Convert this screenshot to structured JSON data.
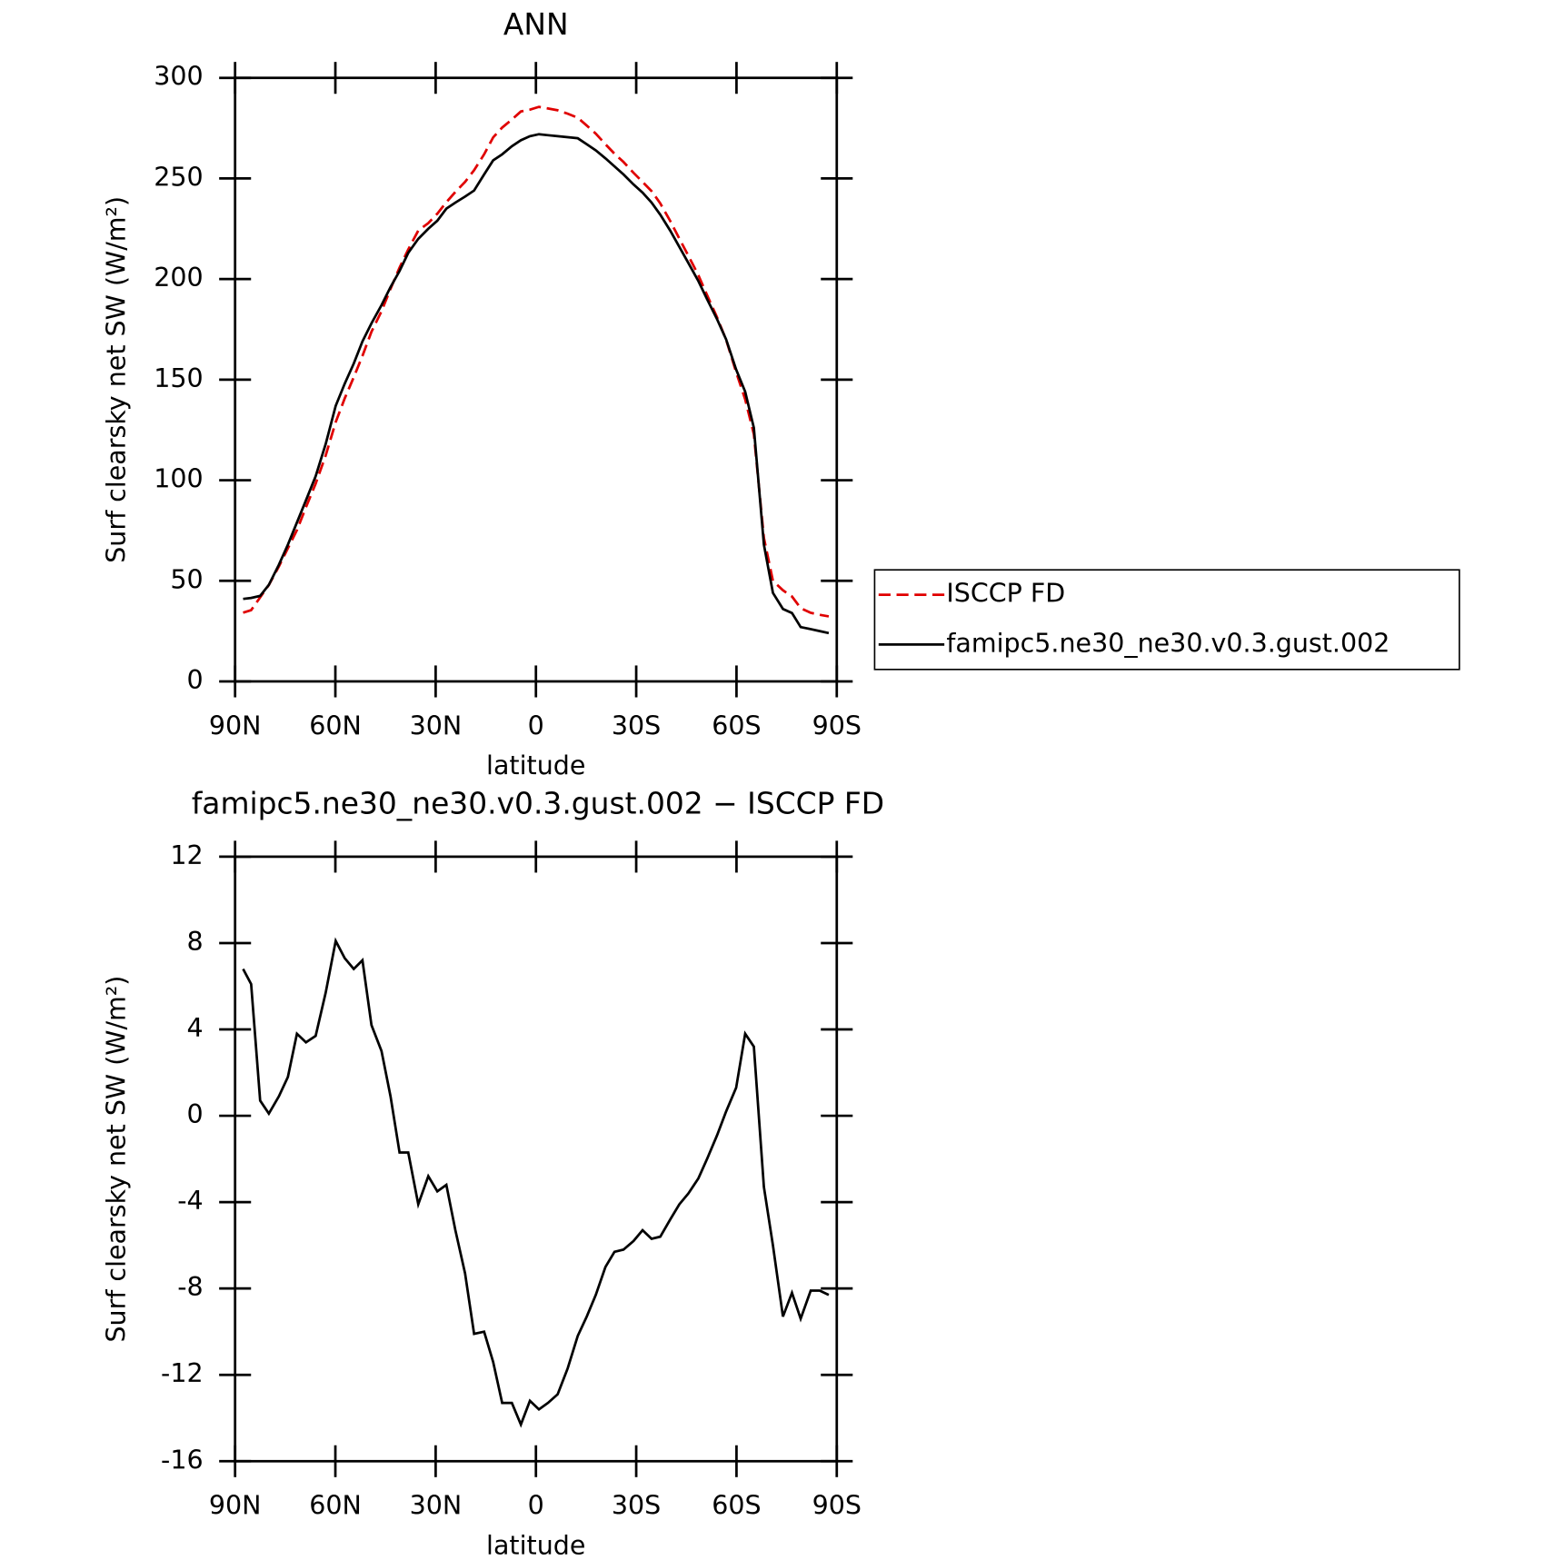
{
  "chart_data": [
    {
      "type": "line",
      "title": "ANN",
      "xlabel": "latitude",
      "ylabel": "Surf clearsky net SW (W/m²)",
      "x": [
        87.6,
        85.2,
        82.5,
        79.9,
        76.9,
        74.2,
        71.5,
        68.8,
        65.9,
        62.9,
        59.9,
        57.2,
        54.5,
        51.9,
        49.2,
        46.2,
        43.5,
        40.8,
        38.2,
        35.2,
        32.2,
        29.5,
        26.8,
        24.1,
        21.2,
        18.5,
        15.5,
        12.8,
        10.1,
        7.2,
        4.5,
        1.8,
        -0.9,
        -3.6,
        -6.5,
        -9.5,
        -12.5,
        -15.2,
        -17.9,
        -20.8,
        -23.5,
        -26.2,
        -29.2,
        -31.9,
        -34.6,
        -37.2,
        -40.2,
        -42.9,
        -45.6,
        -48.6,
        -51.2,
        -54.2,
        -56.9,
        -59.9,
        -62.6,
        -65.2,
        -68.2,
        -70.9,
        -73.9,
        -76.6,
        -79.2,
        -82.2,
        -84.9,
        -87.6
      ],
      "series": [
        {
          "name": "ISCCP FD",
          "color": "#e00000",
          "linestyle": "dashed",
          "values": [
            34.2,
            35.4,
            41.8,
            47.9,
            57.1,
            66.2,
            75.2,
            86.6,
            98.3,
            112.3,
            128.9,
            140.7,
            151.2,
            161.8,
            173.8,
            184,
            195.1,
            205.7,
            214.7,
            224.1,
            227.8,
            232.5,
            238.2,
            243.3,
            248.3,
            254.1,
            262,
            270.4,
            275.3,
            279.3,
            283.3,
            284.2,
            285.6,
            284.8,
            283.9,
            282.2,
            280.2,
            276.3,
            272.3,
            267,
            262.3,
            258.2,
            252.8,
            248.3,
            243.7,
            237.6,
            228.8,
            220.1,
            211.6,
            201.9,
            192,
            180.9,
            169.8,
            153.7,
            140.2,
            122.8,
            71.3,
            50,
            45.3,
            42.2,
            36.4,
            34.1,
            33.1,
            32.3
          ]
        },
        {
          "name": "famipc5.ne30_ne30.v0.3.gust.002",
          "color": "#000000",
          "linestyle": "solid",
          "values": [
            41,
            41.5,
            42.5,
            48,
            58,
            68,
            79,
            90,
            102,
            118,
            137,
            148,
            158,
            169,
            178,
            187,
            196,
            204,
            213,
            220,
            225,
            229,
            235,
            238,
            241,
            244,
            252,
            259,
            262,
            266,
            269,
            271,
            272,
            271.5,
            271,
            270.5,
            270,
            267,
            264,
            260,
            256,
            252,
            247,
            243,
            238,
            232,
            224,
            216,
            208,
            199,
            190,
            180,
            170,
            155,
            144,
            126,
            68,
            44,
            36,
            34,
            27,
            26,
            25,
            24
          ]
        }
      ],
      "xlim": [
        90,
        -90
      ],
      "xticks": [
        {
          "value": 90,
          "label": "90N"
        },
        {
          "value": 60,
          "label": "60N"
        },
        {
          "value": 30,
          "label": "30N"
        },
        0,
        {
          "value": -30,
          "label": "30S"
        },
        {
          "value": -60,
          "label": "60S"
        },
        {
          "value": -90,
          "label": "90S"
        }
      ],
      "ylim": [
        0,
        300
      ],
      "yticks": [
        0,
        50,
        100,
        150,
        200,
        250,
        300
      ],
      "legend": "right"
    },
    {
      "type": "line",
      "title": "famipc5.ne30_ne30.v0.3.gust.002 − ISCCP FD",
      "xlabel": "latitude",
      "ylabel": "Surf clearsky net SW (W/m²)",
      "x": [
        87.6,
        85.2,
        82.5,
        79.9,
        76.9,
        74.2,
        71.5,
        68.8,
        65.9,
        62.9,
        59.9,
        57.2,
        54.5,
        51.9,
        49.2,
        46.2,
        43.5,
        40.8,
        38.2,
        35.2,
        32.2,
        29.5,
        26.8,
        24.1,
        21.2,
        18.5,
        15.5,
        12.8,
        10.1,
        7.2,
        4.5,
        1.8,
        -0.9,
        -3.6,
        -6.5,
        -9.5,
        -12.5,
        -15.2,
        -17.9,
        -20.8,
        -23.5,
        -26.2,
        -29.2,
        -31.9,
        -34.6,
        -37.2,
        -40.2,
        -42.9,
        -45.6,
        -48.6,
        -51.2,
        -54.2,
        -56.9,
        -59.9,
        -62.6,
        -65.2,
        -68.2,
        -70.9,
        -73.9,
        -76.6,
        -79.2,
        -82.2,
        -84.9,
        -87.6
      ],
      "series": [
        {
          "color": "#000000",
          "linestyle": "solid",
          "values": [
            6.8,
            6.1,
            0.7,
            0.1,
            0.9,
            1.8,
            3.8,
            3.4,
            3.7,
            5.7,
            8.1,
            7.3,
            6.8,
            7.2,
            4.2,
            3.0,
            0.9,
            -1.7,
            -1.7,
            -4.1,
            -2.8,
            -3.5,
            -3.2,
            -5.3,
            -7.3,
            -10.1,
            -10.0,
            -11.4,
            -13.3,
            -13.3,
            -14.3,
            -13.2,
            -13.6,
            -13.3,
            -12.9,
            -11.7,
            -10.2,
            -9.3,
            -8.3,
            -7.0,
            -6.3,
            -6.2,
            -5.8,
            -5.3,
            -5.7,
            -5.6,
            -4.8,
            -4.1,
            -3.6,
            -2.9,
            -2.0,
            -0.9,
            0.2,
            1.3,
            3.8,
            3.2,
            -3.3,
            -6.0,
            -9.3,
            -8.2,
            -9.4,
            -8.1,
            -8.1,
            -8.3
          ]
        }
      ],
      "xlim": [
        90,
        -90
      ],
      "xticks": [
        {
          "value": 90,
          "label": "90N"
        },
        {
          "value": 60,
          "label": "60N"
        },
        {
          "value": 30,
          "label": "30N"
        },
        0,
        {
          "value": -30,
          "label": "30S"
        },
        {
          "value": -60,
          "label": "60S"
        },
        {
          "value": -90,
          "label": "90S"
        }
      ],
      "ylim": [
        -16,
        12
      ],
      "yticks": [
        -16,
        -12,
        -8,
        -4,
        0,
        4,
        8,
        12
      ]
    }
  ]
}
